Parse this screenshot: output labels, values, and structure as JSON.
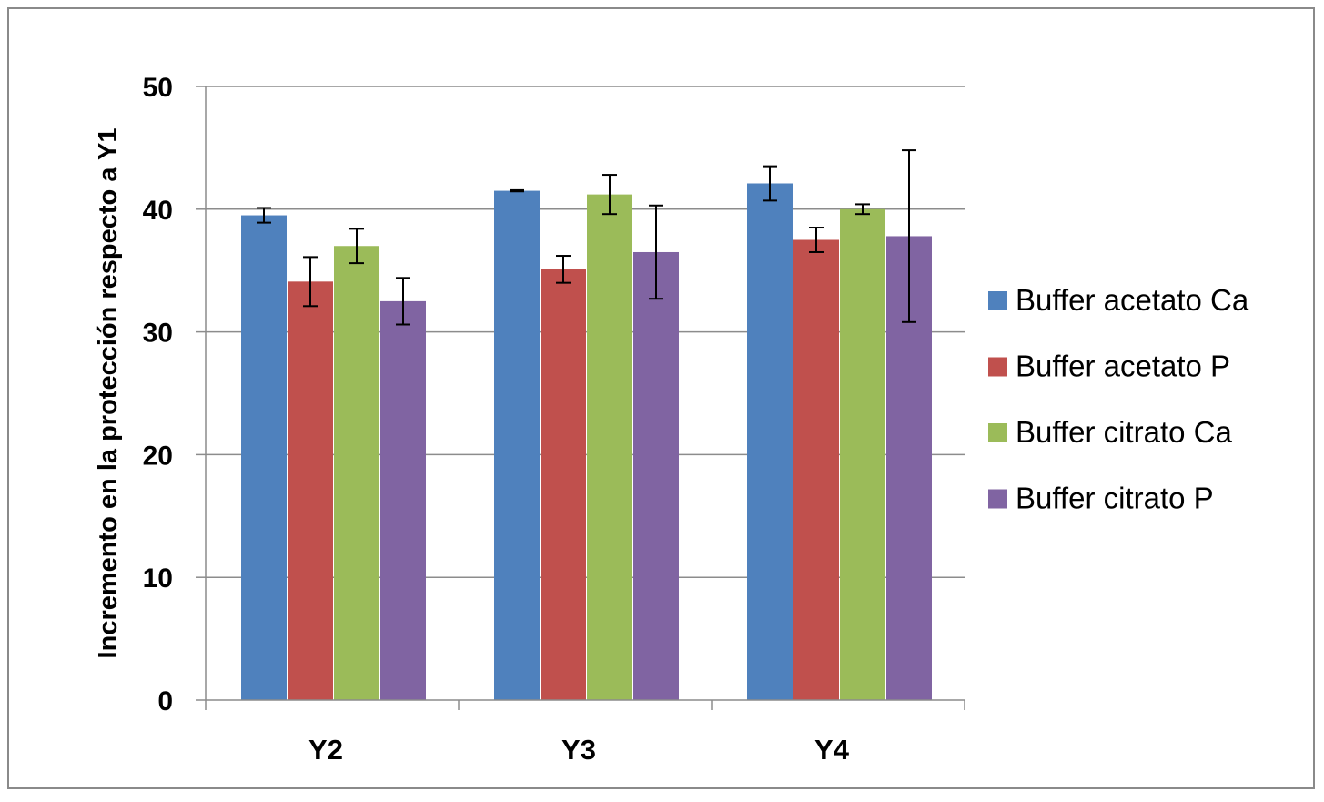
{
  "chart_data": {
    "type": "bar",
    "title": "",
    "xlabel": "",
    "ylabel": "Incremento en la protección respecto a Y1",
    "categories": [
      "Y2",
      "Y3",
      "Y4"
    ],
    "ylim": [
      0,
      50
    ],
    "yticks": [
      0,
      10,
      20,
      30,
      40,
      50
    ],
    "grid": true,
    "legend_position": "right",
    "series": [
      {
        "name": "Buffer acetato Ca",
        "color": "#4F81BD",
        "values": [
          39.5,
          41.5,
          42.1
        ],
        "errors": [
          0.6,
          0.05,
          1.4
        ]
      },
      {
        "name": "Buffer acetato P",
        "color": "#C0504D",
        "values": [
          34.1,
          35.1,
          37.5
        ],
        "errors": [
          2.0,
          1.1,
          1.0
        ]
      },
      {
        "name": "Buffer citrato Ca",
        "color": "#9BBB59",
        "values": [
          37.0,
          41.2,
          40.0
        ],
        "errors": [
          1.4,
          1.6,
          0.4
        ]
      },
      {
        "name": "Buffer citrato P",
        "color": "#8064A2",
        "values": [
          32.5,
          36.5,
          37.8
        ],
        "errors": [
          1.9,
          3.8,
          7.0
        ]
      }
    ]
  }
}
